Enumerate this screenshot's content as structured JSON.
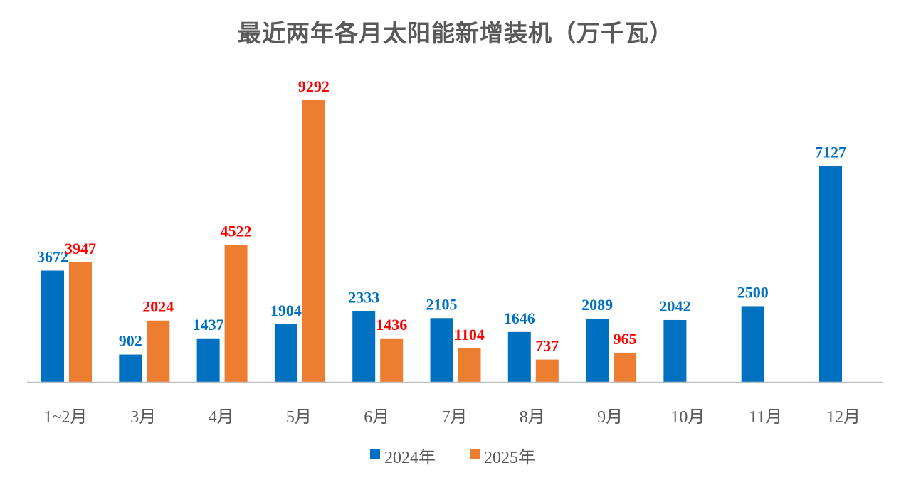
{
  "chart_data": {
    "type": "bar",
    "title": "最近两年各月太阳能新增装机（万千瓦）",
    "xlabel": "",
    "ylabel": "",
    "categories": [
      "1~2月",
      "3月",
      "4月",
      "5月",
      "6月",
      "7月",
      "8月",
      "9月",
      "10月",
      "11月",
      "12月"
    ],
    "series": [
      {
        "name": "2024年",
        "color": "#0070C0",
        "label_color": "#0070C0",
        "values": [
          3672,
          902,
          1437,
          1904,
          2333,
          2105,
          1646,
          2089,
          2042,
          2500,
          7127
        ]
      },
      {
        "name": "2025年",
        "color": "#ED7D31",
        "label_color": "#FF0000",
        "values": [
          3947,
          2024,
          4522,
          9292,
          1436,
          1104,
          737,
          965,
          null,
          null,
          null
        ]
      }
    ],
    "ylim": [
      0,
      9292
    ],
    "grid": false,
    "legend_position": "bottom"
  }
}
